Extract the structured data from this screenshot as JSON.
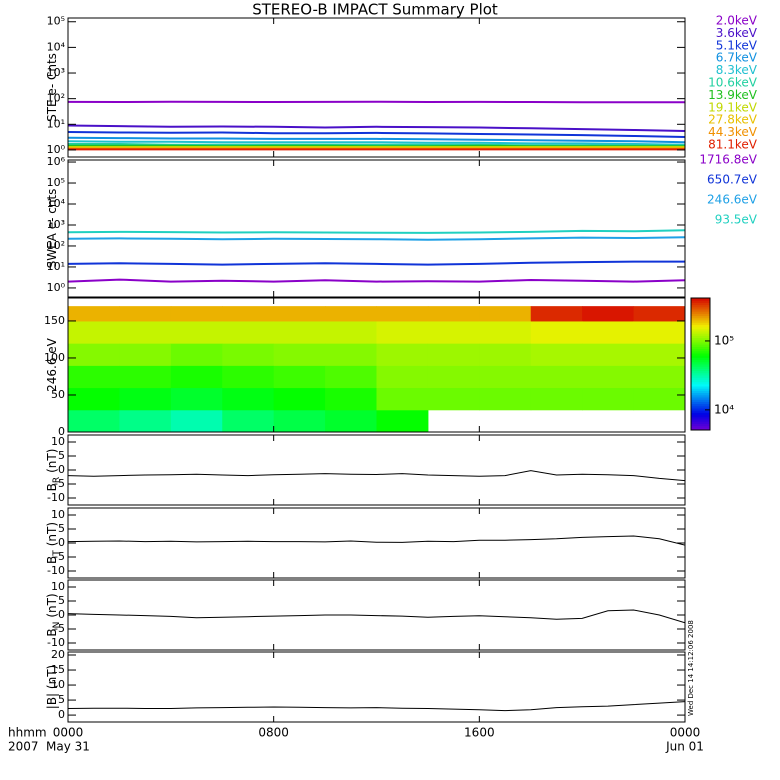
{
  "title": "STEREO-B IMPACT Summary Plot",
  "timestamp": "Wed Dec 14 14:12:06 2008",
  "x_axis": {
    "xlim": [
      0,
      24
    ],
    "xticks": [
      {
        "value": 0,
        "label": "0000"
      },
      {
        "value": 8,
        "label": "0800"
      },
      {
        "value": 16,
        "label": "1600"
      },
      {
        "value": 24,
        "label": "0000"
      }
    ],
    "date_labels": [
      "May 31",
      null,
      null,
      "Jun 01"
    ],
    "unit_label": "hhmm",
    "year_label": "2007"
  },
  "chart_data": [
    {
      "type": "line",
      "ylabel": "STE e- Cnts",
      "log_y": true,
      "ylim": [
        0.53,
        140000
      ],
      "yticks": [
        {
          "value": 1,
          "label": "10⁰"
        },
        {
          "value": 10,
          "label": "10¹"
        },
        {
          "value": 100,
          "label": "10²"
        },
        {
          "value": 1000,
          "label": "10³"
        },
        {
          "value": 10000,
          "label": "10⁴"
        },
        {
          "value": 100000,
          "label": "10⁵"
        }
      ],
      "x": [
        0,
        2,
        4,
        6,
        8,
        10,
        12,
        14,
        16,
        18,
        20,
        22,
        24
      ],
      "series": [
        {
          "name": "2.0keV",
          "color": "#8a00c8",
          "values": [
            75,
            74,
            76,
            75,
            74,
            75,
            76,
            74,
            75,
            74,
            73,
            72,
            72
          ]
        },
        {
          "name": "3.6keV",
          "color": "#4a10c8",
          "values": [
            9,
            8.5,
            8,
            8.2,
            8,
            7.5,
            8,
            7.8,
            7.5,
            7,
            6.5,
            6,
            5.5
          ]
        },
        {
          "name": "5.1keV",
          "color": "#1034d8",
          "values": [
            5,
            4.8,
            4.7,
            4.8,
            4.5,
            4.5,
            4.6,
            4.4,
            4.2,
            4,
            3.8,
            3.5,
            3.2
          ]
        },
        {
          "name": "6.7keV",
          "color": "#1090e0",
          "values": [
            3,
            2.9,
            2.8,
            2.8,
            2.7,
            2.7,
            2.7,
            2.6,
            2.5,
            2.4,
            2.3,
            2.2,
            2
          ]
        },
        {
          "name": "8.3keV",
          "color": "#20c0d0",
          "values": [
            2.2,
            2.1,
            2.1,
            2,
            2,
            2,
            2,
            1.9,
            1.9,
            1.8,
            1.8,
            1.7,
            1.6
          ]
        },
        {
          "name": "10.6keV",
          "color": "#20d0a0",
          "values": [
            1.7,
            1.7,
            1.6,
            1.6,
            1.6,
            1.6,
            1.6,
            1.6,
            1.6,
            1.5,
            1.5,
            1.5,
            1.5
          ]
        },
        {
          "name": "13.9keV",
          "color": "#20c020",
          "values": [
            1.45,
            1.45,
            1.45,
            1.4,
            1.45,
            1.45,
            1.4,
            1.4,
            1.45,
            1.4,
            1.4,
            1.4,
            1.4
          ]
        },
        {
          "name": "19.1keV",
          "color": "#c0d800",
          "values": [
            1.3,
            1.3,
            1.3,
            1.3,
            1.3,
            1.3,
            1.3,
            1.3,
            1.3,
            1.3,
            1.3,
            1.3,
            1.3
          ]
        },
        {
          "name": "27.8keV",
          "color": "#e8c000",
          "values": [
            1.2,
            1.2,
            1.2,
            1.2,
            1.2,
            1.2,
            1.2,
            1.2,
            1.2,
            1.2,
            1.2,
            1.2,
            1.2
          ]
        },
        {
          "name": "44.3keV",
          "color": "#f09000",
          "values": [
            1.1,
            1.1,
            1.1,
            1.1,
            1.1,
            1.1,
            1.1,
            1.1,
            1.1,
            1.1,
            1.1,
            1.1,
            1.1
          ]
        },
        {
          "name": "81.1keV",
          "color": "#e02000",
          "values": [
            1.05,
            1.05,
            1.05,
            1.05,
            1.05,
            1.05,
            1.05,
            1.05,
            1.05,
            1.05,
            1.05,
            1.05,
            1.05
          ]
        }
      ]
    },
    {
      "type": "line",
      "ylabel": "SWEA e- cnts",
      "log_y": true,
      "ylim": [
        0.37,
        1250000
      ],
      "yticks": [
        {
          "value": 1,
          "label": "10⁰"
        },
        {
          "value": 10,
          "label": "10¹"
        },
        {
          "value": 100,
          "label": "10²"
        },
        {
          "value": 1000,
          "label": "10³"
        },
        {
          "value": 10000,
          "label": "10⁴"
        },
        {
          "value": 100000,
          "label": "10⁵"
        },
        {
          "value": 1000000,
          "label": "10⁶"
        }
      ],
      "x": [
        0,
        2,
        4,
        6,
        8,
        10,
        12,
        14,
        16,
        18,
        20,
        22,
        24
      ],
      "series": [
        {
          "name": "1716.8eV",
          "color": "#8a00c8",
          "values": [
            2,
            2.5,
            2,
            2.2,
            2,
            2.3,
            2,
            2.1,
            2,
            2.4,
            2.2,
            2,
            2.3
          ]
        },
        {
          "name": "650.7eV",
          "color": "#1034d8",
          "values": [
            14,
            15,
            14,
            13,
            14,
            15,
            14,
            13,
            14,
            16,
            17,
            18,
            18
          ]
        },
        {
          "name": "246.6eV",
          "color": "#1ea0e6",
          "values": [
            220,
            230,
            220,
            210,
            220,
            215,
            210,
            200,
            210,
            230,
            250,
            240,
            260
          ]
        },
        {
          "name": "93.5eV",
          "color": "#20d0c0",
          "values": [
            450,
            470,
            460,
            440,
            450,
            440,
            430,
            420,
            440,
            470,
            520,
            500,
            560
          ]
        }
      ]
    },
    {
      "type": "heatmap",
      "ylabel": "246.6 eV",
      "ylim": [
        0,
        181
      ],
      "yticks": [
        0,
        50,
        100,
        150
      ],
      "x_bins": [
        0,
        2,
        4,
        6,
        8,
        10,
        12,
        14,
        16,
        18,
        20,
        22,
        24
      ],
      "y_bins": [
        0,
        30,
        60,
        90,
        120,
        150,
        170
      ],
      "values": [
        [
          40000,
          60000,
          70000,
          100000,
          130000,
          200000
        ],
        [
          35000,
          55000,
          70000,
          100000,
          130000,
          200000
        ],
        [
          30000,
          50000,
          65000,
          90000,
          130000,
          200000
        ],
        [
          40000,
          55000,
          70000,
          95000,
          130000,
          200000
        ],
        [
          45000,
          60000,
          75000,
          100000,
          130000,
          200000
        ],
        [
          50000,
          65000,
          80000,
          100000,
          130000,
          200000
        ],
        [
          60000,
          90000,
          100000,
          110000,
          140000,
          200000
        ],
        [
          null,
          90000,
          100000,
          110000,
          140000,
          200000
        ],
        [
          null,
          90000,
          100000,
          110000,
          140000,
          200000
        ],
        [
          null,
          90000,
          100000,
          115000,
          150000,
          350000
        ],
        [
          null,
          90000,
          100000,
          115000,
          150000,
          380000
        ],
        [
          null,
          90000,
          100000,
          115000,
          150000,
          350000
        ]
      ],
      "colorbar": {
        "log": true,
        "lim": [
          5100,
          420000
        ],
        "ticks": [
          {
            "value": 10000,
            "label": "10⁴"
          },
          {
            "value": 100000,
            "label": "10⁵"
          }
        ]
      }
    },
    {
      "type": "line",
      "ylabel": "B",
      "ylabel_subscript": "R",
      "ylabel_units": "(nT)",
      "ylim": [
        -12.5,
        12.5
      ],
      "yticks": [
        -10,
        -5,
        0,
        5,
        10
      ],
      "x": [
        0,
        1,
        2,
        3,
        4,
        5,
        6,
        7,
        8,
        9,
        10,
        11,
        12,
        13,
        14,
        15,
        16,
        17,
        18,
        19,
        20,
        21,
        22,
        23,
        24
      ],
      "series": [
        {
          "color": "#000000",
          "values": [
            -2,
            -2.2,
            -2,
            -1.8,
            -1.7,
            -1.5,
            -1.8,
            -2,
            -1.7,
            -1.5,
            -1.3,
            -1.5,
            -1.6,
            -1.3,
            -1.8,
            -2,
            -2.2,
            -2,
            -0.2,
            -1.8,
            -1.5,
            -1.7,
            -2,
            -3,
            -3.8
          ]
        }
      ]
    },
    {
      "type": "line",
      "ylabel": "B",
      "ylabel_subscript": "T",
      "ylabel_units": "(nT)",
      "ylim": [
        -12.5,
        12.5
      ],
      "yticks": [
        -10,
        -5,
        0,
        5,
        10
      ],
      "x": [
        0,
        1,
        2,
        3,
        4,
        5,
        6,
        7,
        8,
        9,
        10,
        11,
        12,
        13,
        14,
        15,
        16,
        17,
        18,
        19,
        20,
        21,
        22,
        23,
        24
      ],
      "series": [
        {
          "color": "#000000",
          "values": [
            0.5,
            0.6,
            0.7,
            0.5,
            0.6,
            0.4,
            0.5,
            0.6,
            0.5,
            0.5,
            0.4,
            0.7,
            0.3,
            0.2,
            0.6,
            0.5,
            1,
            1,
            1.2,
            1.5,
            2,
            2.3,
            2.5,
            1.5,
            -0.8
          ]
        }
      ]
    },
    {
      "type": "line",
      "ylabel": "B",
      "ylabel_subscript": "N",
      "ylabel_units": "(nT)",
      "ylim": [
        -12.5,
        12.5
      ],
      "yticks": [
        -10,
        -5,
        0,
        5,
        10
      ],
      "x": [
        0,
        1,
        2,
        3,
        4,
        5,
        6,
        7,
        8,
        9,
        10,
        11,
        12,
        13,
        14,
        15,
        16,
        17,
        18,
        19,
        20,
        21,
        22,
        23,
        24
      ],
      "series": [
        {
          "color": "#000000",
          "values": [
            0.5,
            0.2,
            0,
            -0.2,
            -0.5,
            -1,
            -0.8,
            -0.6,
            -0.4,
            -0.2,
            0,
            0,
            -0.2,
            -0.4,
            -0.8,
            -0.5,
            -0.3,
            -0.6,
            -1,
            -1.5,
            -1.2,
            1.5,
            1.8,
            0,
            -2.8
          ]
        }
      ]
    },
    {
      "type": "line",
      "ylabel": "|B| (nT)",
      "ylim": [
        -2.3,
        21
      ],
      "yticks": [
        0,
        5,
        10,
        15,
        20
      ],
      "x": [
        0,
        1,
        2,
        3,
        4,
        5,
        6,
        7,
        8,
        9,
        10,
        11,
        12,
        13,
        14,
        15,
        16,
        17,
        18,
        19,
        20,
        21,
        22,
        23,
        24
      ],
      "series": [
        {
          "color": "#000000",
          "values": [
            2.2,
            2.3,
            2.3,
            2.2,
            2.2,
            2.4,
            2.5,
            2.6,
            2.7,
            2.6,
            2.5,
            2.4,
            2.5,
            2.3,
            2.2,
            2.0,
            1.8,
            1.5,
            1.8,
            2.5,
            2.8,
            3,
            3.5,
            4,
            4.5
          ]
        }
      ]
    }
  ]
}
